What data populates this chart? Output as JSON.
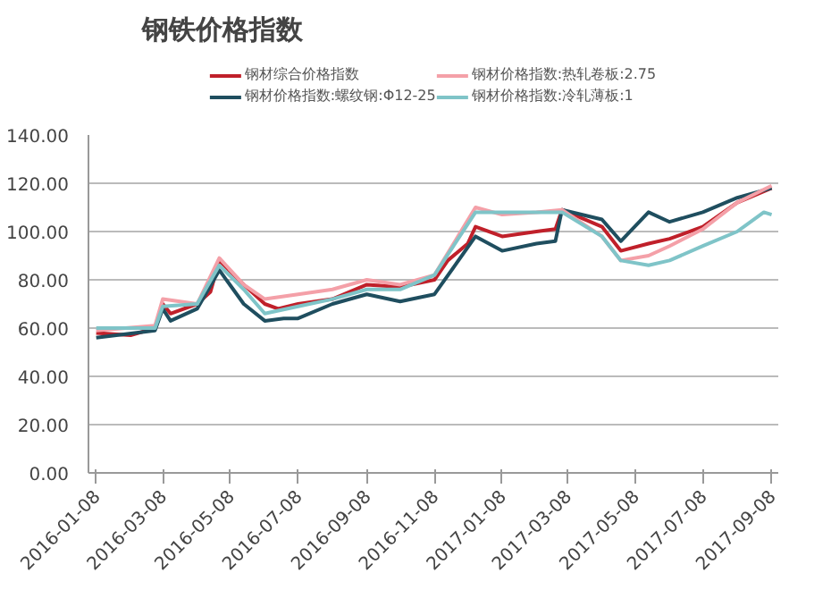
{
  "chart_data": {
    "type": "line",
    "title": "钢铁价格指数",
    "legend": "top",
    "grid": "y",
    "line_style": "solid",
    "xlim": [
      "2016-01-01",
      "2017-09-14"
    ],
    "xticks": [
      {
        "value": "2016-01-08",
        "label": "2016-01-08"
      },
      {
        "value": "2016-03-08",
        "label": "2016-03-08"
      },
      {
        "value": "2016-05-08",
        "label": "2016-05-08"
      },
      {
        "value": "2016-07-08",
        "label": "2016-07-08"
      },
      {
        "value": "2016-09-08",
        "label": "2016-09-08"
      },
      {
        "value": "2016-11-08",
        "label": "2016-11-08"
      },
      {
        "value": "2017-01-08",
        "label": "2017-01-08"
      },
      {
        "value": "2017-03-08",
        "label": "2017-03-08"
      },
      {
        "value": "2017-05-08",
        "label": "2017-05-08"
      },
      {
        "value": "2017-07-08",
        "label": "2017-07-08"
      },
      {
        "value": "2017-09-08",
        "label": "2017-09-08"
      }
    ],
    "ylim": [
      0,
      140
    ],
    "yticks": [
      {
        "value": 0,
        "label": "0.00"
      },
      {
        "value": 20,
        "label": "20.00"
      },
      {
        "value": 40,
        "label": "40.00"
      },
      {
        "value": 60,
        "label": "60.00"
      },
      {
        "value": 80,
        "label": "80.00"
      },
      {
        "value": 100,
        "label": "100.00"
      },
      {
        "value": 120,
        "label": "120.00"
      },
      {
        "value": 140,
        "label": "140.00"
      }
    ],
    "series": [
      {
        "name": "钢材综合价格指数",
        "color": "#c0202a",
        "x": [
          "2016-01-08",
          "2016-02-08",
          "2016-03-01",
          "2016-03-08",
          "2016-03-15",
          "2016-04-08",
          "2016-04-20",
          "2016-04-28",
          "2016-05-20",
          "2016-06-08",
          "2016-06-20",
          "2016-07-08",
          "2016-08-08",
          "2016-09-08",
          "2016-10-08",
          "2016-11-08",
          "2016-11-20",
          "2016-12-08",
          "2016-12-15",
          "2017-01-08",
          "2017-02-08",
          "2017-02-25",
          "2017-03-03",
          "2017-04-08",
          "2017-04-25",
          "2017-05-20",
          "2017-06-08",
          "2017-07-08",
          "2017-08-08",
          "2017-09-08"
        ],
        "values": [
          58,
          57,
          60,
          70,
          66,
          70,
          75,
          88,
          78,
          70,
          68,
          70,
          72,
          78,
          77,
          80,
          88,
          95,
          102,
          98,
          100,
          101,
          109,
          102,
          92,
          95,
          97,
          102,
          112,
          118
        ]
      },
      {
        "name": "钢材价格指数:螺纹钢:Φ12-25",
        "color": "#1f4e5f",
        "x": [
          "2016-01-08",
          "2016-03-01",
          "2016-03-08",
          "2016-03-15",
          "2016-04-08",
          "2016-04-28",
          "2016-05-20",
          "2016-06-08",
          "2016-06-25",
          "2016-07-08",
          "2016-08-08",
          "2016-09-08",
          "2016-10-08",
          "2016-11-08",
          "2016-12-15",
          "2017-01-08",
          "2017-02-08",
          "2017-02-25",
          "2017-03-03",
          "2017-04-08",
          "2017-04-25",
          "2017-05-20",
          "2017-06-08",
          "2017-07-08",
          "2017-08-08",
          "2017-09-08"
        ],
        "values": [
          56,
          59,
          68,
          63,
          68,
          84,
          70,
          63,
          64,
          64,
          70,
          74,
          71,
          74,
          98,
          92,
          95,
          96,
          109,
          105,
          96,
          108,
          104,
          108,
          114,
          118
        ]
      },
      {
        "name": "钢材价格指数:热轧卷板:2.75",
        "color": "#f4a0a8",
        "x": [
          "2016-01-08",
          "2016-03-01",
          "2016-03-08",
          "2016-04-08",
          "2016-04-28",
          "2016-05-20",
          "2016-06-08",
          "2016-07-08",
          "2016-08-08",
          "2016-09-08",
          "2016-10-08",
          "2016-11-08",
          "2016-12-15",
          "2017-01-08",
          "2017-02-08",
          "2017-03-03",
          "2017-04-08",
          "2017-04-25",
          "2017-05-20",
          "2017-06-08",
          "2017-07-08",
          "2017-08-08",
          "2017-09-08"
        ],
        "values": [
          59,
          61,
          72,
          70,
          89,
          78,
          72,
          74,
          76,
          80,
          78,
          82,
          110,
          107,
          108,
          109,
          98,
          88,
          90,
          94,
          101,
          112,
          119
        ]
      },
      {
        "name": "钢材价格指数:冷轧薄板:1",
        "color": "#7fc4c8",
        "x": [
          "2016-01-08",
          "2016-03-01",
          "2016-03-08",
          "2016-04-08",
          "2016-04-28",
          "2016-05-20",
          "2016-06-08",
          "2016-07-08",
          "2016-08-08",
          "2016-09-08",
          "2016-10-08",
          "2016-11-08",
          "2016-12-15",
          "2017-01-08",
          "2017-02-08",
          "2017-03-03",
          "2017-04-08",
          "2017-04-25",
          "2017-05-20",
          "2017-06-08",
          "2017-07-08",
          "2017-08-08",
          "2017-09-01",
          "2017-09-08"
        ],
        "values": [
          60,
          60,
          69,
          70,
          86,
          76,
          66,
          69,
          72,
          76,
          76,
          82,
          108,
          108,
          108,
          108,
          98,
          88,
          86,
          88,
          94,
          100,
          108,
          107
        ]
      }
    ]
  }
}
